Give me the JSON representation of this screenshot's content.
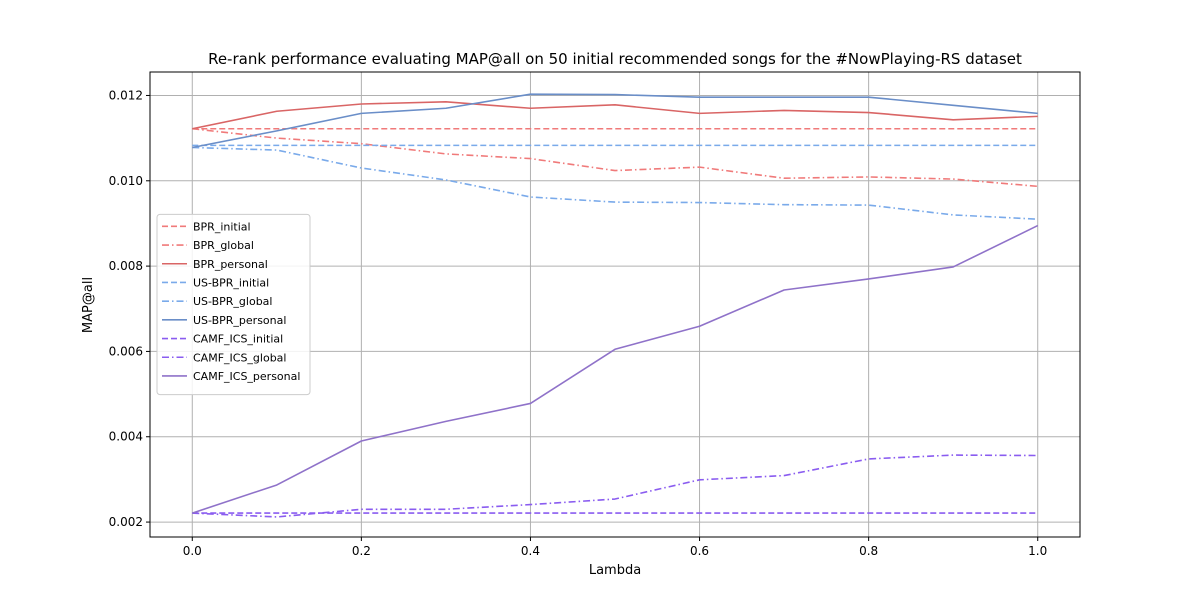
{
  "chart_data": {
    "type": "line",
    "title": "Re-rank performance evaluating MAP@all on 50 initial recommended songs for the #NowPlaying-RS dataset",
    "xlabel": "Lambda",
    "ylabel": "MAP@all",
    "xlim": [
      -0.05,
      1.05
    ],
    "ylim": [
      0.00165,
      0.01255
    ],
    "xticks": [
      0.0,
      0.2,
      0.4,
      0.6,
      0.8,
      1.0
    ],
    "xtick_labels": [
      "0.0",
      "0.2",
      "0.4",
      "0.6",
      "0.8",
      "1.0"
    ],
    "yticks": [
      0.002,
      0.004,
      0.006,
      0.008,
      0.01,
      0.012
    ],
    "ytick_labels": [
      "0.002",
      "0.004",
      "0.006",
      "0.008",
      "0.010",
      "0.012"
    ],
    "grid": true,
    "legend_position": "center-left",
    "x": [
      0.0,
      0.1,
      0.2,
      0.3,
      0.4,
      0.5,
      0.6,
      0.7,
      0.8,
      0.9,
      1.0
    ],
    "series": [
      {
        "name": "BPR_initial",
        "color": "#f07a7a",
        "style": "dashed",
        "values": [
          0.01122,
          0.01122,
          0.01122,
          0.01122,
          0.01122,
          0.01122,
          0.01122,
          0.01122,
          0.01122,
          0.01122,
          0.01122
        ]
      },
      {
        "name": "BPR_global",
        "color": "#f07a7a",
        "style": "dashdot",
        "values": [
          0.01122,
          0.011,
          0.01087,
          0.01063,
          0.01052,
          0.01024,
          0.01032,
          0.01006,
          0.01009,
          0.01004,
          0.00987
        ]
      },
      {
        "name": "BPR_personal",
        "color": "#d96565",
        "style": "solid",
        "values": [
          0.01122,
          0.01163,
          0.0118,
          0.01185,
          0.0117,
          0.01178,
          0.01158,
          0.01165,
          0.0116,
          0.01143,
          0.01151
        ]
      },
      {
        "name": "US-BPR_initial",
        "color": "#7aaaea",
        "style": "dashed",
        "values": [
          0.01083,
          0.01083,
          0.01083,
          0.01083,
          0.01083,
          0.01083,
          0.01083,
          0.01083,
          0.01083,
          0.01083,
          0.01083
        ]
      },
      {
        "name": "US-BPR_global",
        "color": "#7aaaea",
        "style": "dashdot",
        "values": [
          0.01078,
          0.01072,
          0.0103,
          0.01002,
          0.00962,
          0.0095,
          0.00949,
          0.00944,
          0.00943,
          0.0092,
          0.0091
        ]
      },
      {
        "name": "US-BPR_personal",
        "color": "#6a8ec8",
        "style": "solid",
        "values": [
          0.01078,
          0.01117,
          0.01158,
          0.0117,
          0.01203,
          0.01202,
          0.01196,
          0.01196,
          0.01196,
          0.01177,
          0.01158
        ]
      },
      {
        "name": "CAMF_ICS_initial",
        "color": "#8a5cf0",
        "style": "dashed",
        "values": [
          0.00221,
          0.00221,
          0.00221,
          0.00221,
          0.00221,
          0.00221,
          0.00221,
          0.00221,
          0.00221,
          0.00221,
          0.00221
        ]
      },
      {
        "name": "CAMF_ICS_global",
        "color": "#8a5cf0",
        "style": "dashdot",
        "values": [
          0.00221,
          0.00212,
          0.0023,
          0.0023,
          0.00241,
          0.00254,
          0.00299,
          0.00309,
          0.00348,
          0.00357,
          0.00356
        ]
      },
      {
        "name": "CAMF_ICS_personal",
        "color": "#8f72c9",
        "style": "solid",
        "values": [
          0.00221,
          0.00287,
          0.0039,
          0.00436,
          0.00478,
          0.00605,
          0.00659,
          0.00744,
          0.0077,
          0.00798,
          0.00895
        ]
      }
    ]
  }
}
